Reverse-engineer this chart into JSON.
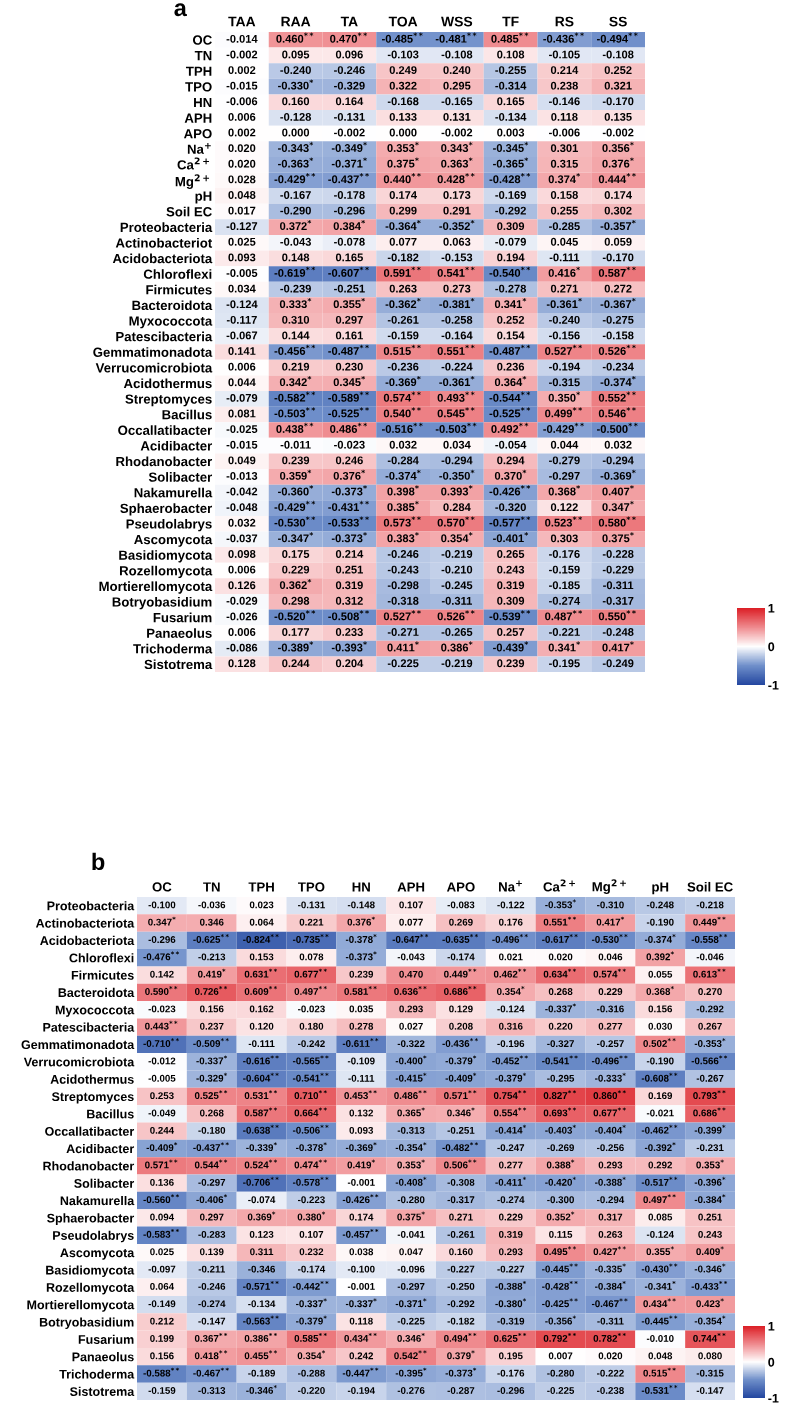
{
  "chart_data": [
    {
      "type": "heatmap",
      "title": "a",
      "clim": [
        -1,
        1
      ],
      "cticks": [
        1,
        0,
        -1
      ],
      "categories": [
        "TAA",
        "RAA",
        "TA",
        "TOA",
        "WSS",
        "TF",
        "RS",
        "SS"
      ],
      "y_categories": [
        "OC",
        "TN",
        "TPH",
        "TPO",
        "HN",
        "APH",
        "APO",
        "Na$^{+}$",
        "Ca$^{2+}$",
        "Mg$^{2+}$",
        "pH",
        "Soil EC",
        "Proteobacteria",
        "Actinobacteriot",
        "Acidobacteriota",
        "Chloroflexi",
        "Firmicutes",
        "Bacteroidota",
        "Myxococcota",
        "Patescibacteria",
        "Gemmatimonadota",
        "Verrucomicrobiota",
        "Acidothermus",
        "Streptomyces",
        "Bacillus",
        "Occallatibacter",
        "Acidibacter",
        "Rhodanobacter",
        "Solibacter",
        "Nakamurella",
        "Sphaerobacter",
        "Pseudolabrys",
        "Ascomycota",
        "Basidiomycota",
        "Rozellomycota",
        "Mortierellomycota",
        "Botryobasidium",
        "Fusarium",
        "Panaeolus",
        "Trichoderma",
        "Sistotrema"
      ],
      "cells": [
        [
          -0.014,
          0.46,
          0.47,
          -0.485,
          -0.481,
          0.485,
          -0.436,
          -0.494
        ],
        [
          -0.002,
          0.095,
          0.096,
          -0.103,
          -0.108,
          0.108,
          -0.105,
          -0.108
        ],
        [
          0.002,
          -0.24,
          -0.246,
          0.249,
          0.24,
          -0.255,
          0.214,
          0.252
        ],
        [
          -0.015,
          -0.33,
          -0.329,
          0.322,
          0.295,
          -0.314,
          0.238,
          0.321
        ],
        [
          -0.006,
          0.16,
          0.164,
          -0.168,
          -0.165,
          0.165,
          -0.146,
          -0.17
        ],
        [
          0.006,
          -0.128,
          -0.131,
          0.133,
          0.131,
          -0.134,
          0.118,
          0.135
        ],
        [
          0.002,
          0.0,
          -0.002,
          0.0,
          -0.002,
          0.003,
          -0.006,
          -0.002
        ],
        [
          0.02,
          -0.343,
          -0.349,
          0.353,
          0.343,
          -0.345,
          0.301,
          0.356
        ],
        [
          0.02,
          -0.363,
          -0.371,
          0.375,
          0.363,
          -0.365,
          0.315,
          0.376
        ],
        [
          0.028,
          -0.429,
          -0.437,
          0.44,
          0.428,
          -0.428,
          0.374,
          0.444
        ],
        [
          0.048,
          -0.167,
          -0.178,
          0.174,
          0.173,
          -0.169,
          0.158,
          0.174
        ],
        [
          0.017,
          -0.29,
          -0.296,
          0.299,
          0.291,
          -0.292,
          0.255,
          0.302
        ],
        [
          -0.127,
          0.372,
          0.384,
          -0.364,
          -0.352,
          0.309,
          -0.285,
          -0.357
        ],
        [
          0.025,
          -0.043,
          -0.078,
          0.077,
          0.063,
          -0.079,
          0.045,
          0.059
        ],
        [
          0.093,
          0.148,
          0.165,
          -0.182,
          -0.153,
          0.194,
          -0.111,
          -0.17
        ],
        [
          -0.005,
          -0.619,
          -0.607,
          0.591,
          0.541,
          -0.54,
          0.416,
          0.587
        ],
        [
          0.034,
          -0.239,
          -0.251,
          0.263,
          0.273,
          -0.278,
          0.271,
          0.272
        ],
        [
          -0.124,
          0.333,
          0.355,
          -0.362,
          -0.381,
          0.341,
          -0.361,
          -0.367
        ],
        [
          -0.117,
          0.31,
          0.297,
          -0.261,
          -0.258,
          0.252,
          -0.24,
          -0.275
        ],
        [
          -0.067,
          0.144,
          0.161,
          -0.159,
          -0.164,
          0.154,
          -0.156,
          -0.158
        ],
        [
          0.141,
          -0.456,
          -0.487,
          0.515,
          0.551,
          -0.487,
          0.527,
          0.526
        ],
        [
          0.006,
          0.219,
          0.23,
          -0.236,
          -0.224,
          0.236,
          -0.194,
          -0.234
        ],
        [
          0.044,
          0.342,
          0.345,
          -0.369,
          -0.361,
          0.364,
          -0.315,
          -0.374
        ],
        [
          -0.079,
          -0.582,
          -0.589,
          0.574,
          0.493,
          -0.544,
          0.35,
          0.552
        ],
        [
          0.081,
          -0.503,
          -0.525,
          0.54,
          0.545,
          -0.525,
          0.499,
          0.546
        ],
        [
          -0.025,
          0.438,
          0.486,
          -0.516,
          -0.503,
          0.492,
          -0.429,
          -0.5
        ],
        [
          -0.015,
          -0.011,
          -0.023,
          0.032,
          0.034,
          -0.054,
          0.044,
          0.032
        ],
        [
          0.049,
          0.239,
          0.246,
          -0.284,
          -0.294,
          0.294,
          -0.279,
          -0.294
        ],
        [
          -0.013,
          0.359,
          0.376,
          -0.374,
          -0.35,
          0.37,
          -0.297,
          -0.369
        ],
        [
          -0.042,
          -0.36,
          -0.373,
          0.398,
          0.393,
          -0.426,
          0.368,
          0.407
        ],
        [
          -0.048,
          -0.429,
          -0.431,
          0.385,
          0.284,
          -0.32,
          0.122,
          0.347
        ],
        [
          0.032,
          -0.53,
          -0.533,
          0.573,
          0.57,
          -0.577,
          0.523,
          0.58
        ],
        [
          -0.037,
          -0.347,
          -0.373,
          0.383,
          0.354,
          -0.401,
          0.303,
          0.375
        ],
        [
          0.098,
          0.175,
          0.214,
          -0.246,
          -0.219,
          0.265,
          -0.176,
          -0.228
        ],
        [
          0.006,
          0.229,
          0.251,
          -0.243,
          -0.21,
          0.243,
          -0.159,
          -0.229
        ],
        [
          0.126,
          0.362,
          0.319,
          -0.298,
          -0.245,
          0.319,
          -0.185,
          -0.311
        ],
        [
          -0.029,
          0.298,
          0.312,
          -0.318,
          -0.311,
          0.309,
          -0.274,
          -0.317
        ],
        [
          -0.026,
          -0.52,
          -0.508,
          0.527,
          0.526,
          -0.539,
          0.487,
          0.55
        ],
        [
          0.006,
          0.177,
          0.233,
          -0.271,
          -0.265,
          0.257,
          -0.221,
          -0.248
        ],
        [
          -0.086,
          -0.389,
          -0.393,
          0.411,
          0.386,
          -0.439,
          0.341,
          0.417
        ],
        [
          0.128,
          0.244,
          0.204,
          -0.225,
          -0.219,
          0.239,
          -0.195,
          -0.249
        ]
      ],
      "cell_labels": [
        [
          "-0.014",
          "0.460$^{**}$",
          "0.470$^{**}$",
          "-0.485$^{**}$",
          "-0.481$^{**}$",
          "0.485$^{**}$",
          "-0.436$^{**}$",
          "-0.494$^{**}$"
        ],
        [
          "-0.002",
          "0.095",
          "0.096",
          "-0.103",
          "-0.108",
          "0.108",
          "-0.105",
          "-0.108"
        ],
        [
          "0.002",
          "-0.240",
          "-0.246",
          "0.249",
          "0.240",
          "-0.255",
          "0.214",
          "0.252"
        ],
        [
          "-0.015",
          "-0.330$^{*}$",
          "-0.329",
          "0.322",
          "0.295",
          "-0.314",
          "0.238",
          "0.321"
        ],
        [
          "-0.006",
          "0.160",
          "0.164",
          "-0.168",
          "-0.165",
          "0.165",
          "-0.146",
          "-0.170"
        ],
        [
          "0.006",
          "-0.128",
          "-0.131",
          "0.133",
          "0.131",
          "-0.134",
          "0.118",
          "0.135"
        ],
        [
          "0.002",
          "0.000",
          "-0.002",
          "0.000",
          "-0.002",
          "0.003",
          "-0.006",
          "-0.002"
        ],
        [
          "0.020",
          "-0.343$^{*}$",
          "-0.349$^{*}$",
          "0.353$^{*}$",
          "0.343$^{*}$",
          "-0.345$^{*}$",
          "0.301",
          "0.356$^{*}$"
        ],
        [
          "0.020",
          "-0.363$^{*}$",
          "-0.371$^{*}$",
          "0.375$^{*}$",
          "0.363$^{*}$",
          "-0.365$^{*}$",
          "0.315",
          "0.376$^{*}$"
        ],
        [
          "0.028",
          "-0.429$^{**}$",
          "-0.437$^{**}$",
          "0.440$^{**}$",
          "0.428$^{**}$",
          "-0.428$^{**}$",
          "0.374$^{*}$",
          "0.444$^{**}$"
        ],
        [
          "0.048",
          "-0.167",
          "-0.178",
          "0.174",
          "0.173",
          "-0.169",
          "0.158",
          "0.174"
        ],
        [
          "0.017",
          "-0.290",
          "-0.296",
          "0.299",
          "0.291",
          "-0.292",
          "0.255",
          "0.302"
        ],
        [
          "-0.127",
          "0.372$^{*}$",
          "0.384$^{*}$",
          "-0.364$^{*}$",
          "-0.352$^{*}$",
          "0.309",
          "-0.285",
          "-0.357$^{*}$"
        ],
        [
          "0.025",
          "-0.043",
          "-0.078",
          "0.077",
          "0.063",
          "-0.079",
          "0.045",
          "0.059"
        ],
        [
          "0.093",
          "0.148",
          "0.165",
          "-0.182",
          "-0.153",
          "0.194",
          "-0.111",
          "-0.170"
        ],
        [
          "-0.005",
          "-0.619$^{**}$",
          "-0.607$^{**}$",
          "0.591$^{**}$",
          "0.541$^{**}$",
          "-0.540$^{**}$",
          "0.416$^{*}$",
          "0.587$^{**}$"
        ],
        [
          "0.034",
          "-0.239",
          "-0.251",
          "0.263",
          "0.273",
          "-0.278",
          "0.271",
          "0.272"
        ],
        [
          "-0.124",
          "0.333$^{*}$",
          "0.355$^{*}$",
          "-0.362$^{*}$",
          "-0.381$^{*}$",
          "0.341$^{*}$",
          "-0.361$^{*}$",
          "-0.367$^{*}$"
        ],
        [
          "-0.117",
          "0.310",
          "0.297",
          "-0.261",
          "-0.258",
          "0.252",
          "-0.240",
          "-0.275"
        ],
        [
          "-0.067",
          "0.144",
          "0.161",
          "-0.159",
          "-0.164",
          "0.154",
          "-0.156",
          "-0.158"
        ],
        [
          "0.141",
          "-0.456$^{**}$",
          "-0.487$^{**}$",
          "0.515$^{**}$",
          "0.551$^{**}$",
          "-0.487$^{**}$",
          "0.527$^{**}$",
          "0.526$^{**}$"
        ],
        [
          "0.006",
          "0.219",
          "0.230",
          "-0.236",
          "-0.224",
          "0.236",
          "-0.194",
          "-0.234"
        ],
        [
          "0.044",
          "0.342$^{*}$",
          "0.345$^{*}$",
          "-0.369$^{*}$",
          "-0.361$^{*}$",
          "0.364$^{*}$",
          "-0.315",
          "-0.374$^{*}$"
        ],
        [
          "-0.079",
          "-0.582$^{**}$",
          "-0.589$^{**}$",
          "0.574$^{**}$",
          "0.493$^{**}$",
          "-0.544$^{**}$",
          "0.350$^{*}$",
          "0.552$^{**}$"
        ],
        [
          "0.081",
          "-0.503$^{**}$",
          "-0.525$^{**}$",
          "0.540$^{**}$",
          "0.545$^{**}$",
          "-0.525$^{**}$",
          "0.499$^{**}$",
          "0.546$^{**}$"
        ],
        [
          "-0.025",
          "0.438$^{**}$",
          "0.486$^{**}$",
          "-0.516$^{**}$",
          "-0.503$^{**}$",
          "0.492$^{**}$",
          "-0.429$^{**}$",
          "-0.500$^{**}$"
        ],
        [
          "-0.015",
          "-0.011",
          "-0.023",
          "0.032",
          "0.034",
          "-0.054",
          "0.044",
          "0.032"
        ],
        [
          "0.049",
          "0.239",
          "0.246",
          "-0.284",
          "-0.294",
          "0.294",
          "-0.279",
          "-0.294"
        ],
        [
          "-0.013",
          "0.359$^{*}$",
          "0.376$^{*}$",
          "-0.374$^{*}$",
          "-0.350$^{*}$",
          "0.370$^{*}$",
          "-0.297",
          "-0.369$^{*}$"
        ],
        [
          "-0.042",
          "-0.360$^{*}$",
          "-0.373$^{*}$",
          "0.398$^{*}$",
          "0.393$^{*}$",
          "-0.426$^{**}$",
          "0.368$^{*}$",
          "0.407$^{*}$"
        ],
        [
          "-0.048",
          "-0.429$^{**}$",
          "-0.431$^{**}$",
          "0.385$^{*}$",
          "0.284",
          "-0.320",
          "0.122",
          "0.347$^{*}$"
        ],
        [
          "0.032",
          "-0.530$^{**}$",
          "-0.533$^{**}$",
          "0.573$^{**}$",
          "0.570$^{**}$",
          "-0.577$^{**}$",
          "0.523$^{**}$",
          "0.580$^{**}$"
        ],
        [
          "-0.037",
          "-0.347$^{*}$",
          "-0.373$^{*}$",
          "0.383$^{*}$",
          "0.354$^{*}$",
          "-0.401$^{*}$",
          "0.303",
          "0.375$^{*}$"
        ],
        [
          "0.098",
          "0.175",
          "0.214",
          "-0.246",
          "-0.219",
          "0.265",
          "-0.176",
          "-0.228"
        ],
        [
          "0.006",
          "0.229",
          "0.251",
          "-0.243",
          "-0.210",
          "0.243",
          "-0.159",
          "-0.229"
        ],
        [
          "0.126",
          "0.362$^{*}$",
          "0.319",
          "-0.298",
          "-0.245",
          "0.319",
          "-0.185",
          "-0.311"
        ],
        [
          "-0.029",
          "0.298",
          "0.312",
          "-0.318",
          "-0.311",
          "0.309",
          "-0.274",
          "-0.317"
        ],
        [
          "-0.026",
          "-0.520$^{**}$",
          "-0.508$^{**}$",
          "0.527$^{**}$",
          "0.526$^{**}$",
          "-0.539$^{**}$",
          "0.487$^{**}$",
          "0.550$^{**}$"
        ],
        [
          "0.006",
          "0.177",
          "0.233",
          "-0.271",
          "-0.265",
          "0.257",
          "-0.221",
          "-0.248"
        ],
        [
          "-0.086",
          "-0.389$^{*}$",
          "-0.393$^{*}$",
          "0.411$^{*}$",
          "0.386$^{*}$",
          "-0.439$^{*}$",
          "0.341$^{*}$",
          "0.417$^{*}$"
        ],
        [
          "0.128",
          "0.244",
          "0.204",
          "-0.225",
          "-0.219",
          "0.239",
          "-0.195",
          "-0.249"
        ]
      ]
    },
    {
      "type": "heatmap",
      "title": "b",
      "clim": [
        -1,
        1
      ],
      "cticks": [
        1,
        0,
        -1
      ],
      "categories": [
        "OC",
        "TN",
        "TPH",
        "TPO",
        "HN",
        "APH",
        "APO",
        "Na$^{+}$",
        "Ca$^{2+}$",
        "Mg$^{2+}$",
        "pH",
        "Soil EC"
      ],
      "y_categories": [
        "Proteobacteria",
        "Actinobacteriota",
        "Acidobacteriota",
        "Chloroflexi",
        "Firmicutes",
        "Bacteroidota",
        "Myxococcota",
        "Patescibacteria",
        "Gemmatimonadota",
        "Verrucomicrobiota",
        "Acidothermus",
        "Streptomyces",
        "Bacillus",
        "Occallatibacter",
        "Acidibacter",
        "Rhodanobacter",
        "Solibacter",
        "Nakamurella",
        "Sphaerobacter",
        "Pseudolabrys",
        "Ascomycota",
        "Basidiomycota",
        "Rozellomycota",
        "Mortierellomycota",
        "Botryobasidium",
        "Fusarium",
        "Panaeolus",
        "Trichoderma",
        "Sistotrema"
      ],
      "cells": [
        [
          -0.1,
          -0.036,
          0.023,
          -0.131,
          -0.148,
          0.107,
          -0.083,
          -0.122,
          -0.353,
          -0.31,
          -0.248,
          -0.218
        ],
        [
          0.347,
          0.346,
          0.064,
          0.221,
          0.376,
          0.077,
          0.269,
          0.176,
          0.551,
          0.417,
          -0.19,
          0.449
        ],
        [
          -0.296,
          -0.625,
          -0.824,
          -0.735,
          -0.378,
          -0.647,
          -0.635,
          -0.496,
          -0.617,
          -0.53,
          -0.374,
          -0.558
        ],
        [
          -0.476,
          -0.213,
          0.153,
          0.078,
          -0.373,
          -0.043,
          -0.174,
          0.021,
          0.02,
          0.046,
          0.392,
          -0.046
        ],
        [
          0.142,
          0.419,
          0.631,
          0.677,
          0.239,
          0.47,
          0.449,
          0.462,
          0.634,
          0.574,
          0.055,
          0.613
        ],
        [
          0.59,
          0.726,
          0.609,
          0.497,
          0.581,
          0.636,
          0.686,
          0.354,
          0.268,
          0.229,
          0.368,
          0.27
        ],
        [
          -0.023,
          0.156,
          0.162,
          -0.023,
          0.035,
          0.293,
          0.129,
          -0.124,
          -0.337,
          -0.316,
          0.156,
          -0.292
        ],
        [
          0.443,
          0.237,
          0.12,
          0.18,
          0.278,
          0.027,
          0.208,
          0.316,
          0.22,
          0.277,
          0.03,
          0.267
        ],
        [
          -0.71,
          -0.509,
          -0.111,
          -0.242,
          -0.611,
          -0.322,
          -0.436,
          -0.196,
          -0.327,
          -0.257,
          0.502,
          -0.353
        ],
        [
          -0.012,
          -0.337,
          -0.616,
          -0.565,
          -0.109,
          -0.4,
          -0.379,
          -0.452,
          -0.541,
          -0.496,
          -0.19,
          -0.566
        ],
        [
          -0.005,
          -0.329,
          -0.604,
          -0.541,
          -0.111,
          -0.415,
          -0.409,
          -0.379,
          -0.295,
          -0.333,
          -0.608,
          -0.267
        ],
        [
          0.253,
          0.525,
          0.531,
          0.71,
          0.453,
          0.486,
          0.571,
          0.754,
          0.827,
          0.86,
          0.169,
          0.793
        ],
        [
          -0.049,
          0.268,
          0.587,
          0.664,
          0.132,
          0.365,
          0.346,
          0.554,
          0.693,
          0.677,
          -0.021,
          0.686
        ],
        [
          0.244,
          -0.18,
          -0.638,
          -0.506,
          0.093,
          -0.313,
          -0.251,
          -0.414,
          -0.403,
          -0.404,
          -0.462,
          -0.399
        ],
        [
          -0.409,
          -0.437,
          -0.339,
          -0.378,
          -0.369,
          -0.354,
          -0.482,
          -0.247,
          -0.269,
          -0.256,
          -0.392,
          -0.231
        ],
        [
          0.571,
          0.544,
          0.524,
          0.474,
          0.419,
          0.353,
          0.506,
          0.277,
          0.388,
          0.293,
          0.292,
          0.353
        ],
        [
          0.136,
          -0.297,
          -0.706,
          -0.578,
          -0.001,
          -0.408,
          -0.308,
          -0.411,
          -0.42,
          -0.388,
          -0.517,
          -0.396
        ],
        [
          -0.56,
          -0.406,
          -0.074,
          -0.223,
          -0.426,
          -0.28,
          -0.317,
          -0.274,
          -0.3,
          -0.294,
          0.497,
          -0.384
        ],
        [
          0.094,
          0.297,
          0.369,
          0.38,
          0.174,
          0.375,
          0.271,
          0.229,
          0.352,
          0.317,
          0.085,
          0.251
        ],
        [
          -0.583,
          -0.283,
          0.123,
          0.107,
          -0.457,
          -0.041,
          -0.261,
          0.319,
          0.115,
          0.263,
          -0.124,
          0.243
        ],
        [
          0.025,
          0.139,
          0.311,
          0.232,
          0.038,
          0.047,
          0.16,
          0.293,
          0.495,
          0.427,
          0.355,
          0.409
        ],
        [
          -0.097,
          -0.211,
          -0.346,
          -0.174,
          -0.1,
          -0.096,
          -0.227,
          -0.227,
          -0.445,
          -0.335,
          -0.43,
          -0.346
        ],
        [
          0.064,
          -0.246,
          -0.571,
          -0.442,
          -0.001,
          -0.297,
          -0.25,
          -0.388,
          -0.428,
          -0.384,
          -0.341,
          -0.433
        ],
        [
          -0.149,
          -0.274,
          -0.134,
          -0.337,
          -0.337,
          -0.371,
          -0.292,
          -0.38,
          -0.425,
          -0.467,
          0.434,
          0.423
        ],
        [
          0.212,
          -0.147,
          -0.563,
          -0.379,
          0.118,
          -0.225,
          -0.182,
          -0.319,
          -0.356,
          -0.311,
          -0.445,
          -0.354
        ],
        [
          0.199,
          0.367,
          0.386,
          0.585,
          0.434,
          0.346,
          0.494,
          0.625,
          0.792,
          0.782,
          -0.01,
          0.744
        ],
        [
          0.156,
          0.418,
          0.455,
          0.354,
          0.242,
          0.542,
          0.379,
          0.195,
          0.007,
          0.02,
          0.048,
          0.08
        ],
        [
          -0.588,
          -0.467,
          -0.189,
          -0.288,
          -0.447,
          -0.395,
          -0.373,
          -0.176,
          -0.28,
          -0.222,
          0.515,
          -0.315
        ],
        [
          -0.159,
          -0.313,
          -0.346,
          -0.22,
          -0.194,
          -0.276,
          -0.287,
          -0.296,
          -0.225,
          -0.238,
          -0.531,
          -0.147
        ]
      ],
      "cell_labels": [
        [
          "-0.100",
          "-0.036",
          "0.023",
          "-0.131",
          "-0.148",
          "0.107",
          "-0.083",
          "-0.122",
          "-0.353$^{*}$",
          "-0.310",
          "-0.248",
          "-0.218"
        ],
        [
          "0.347$^{*}$",
          "0.346",
          "0.064",
          "0.221",
          "0.376$^{*}$",
          "0.077",
          "0.269",
          "0.176",
          "0.551$^{**}$",
          "0.417$^{*}$",
          "-0.190",
          "0.449$^{**}$"
        ],
        [
          "-0.296",
          "-0.625$^{**}$",
          "-0.824$^{**}$",
          "-0.735$^{**}$",
          "-0.378$^{*}$",
          "-0.647$^{**}$",
          "-0.635$^{**}$",
          "-0.496$^{**}$",
          "-0.617$^{**}$",
          "-0.530$^{**}$",
          "-0.374$^{*}$",
          "-0.558$^{**}$"
        ],
        [
          "-0.476$^{**}$",
          "-0.213",
          "0.153",
          "0.078",
          "-0.373$^{*}$",
          "-0.043",
          "-0.174",
          "0.021",
          "0.020",
          "0.046",
          "0.392$^{*}$",
          "-0.046"
        ],
        [
          "0.142",
          "0.419$^{*}$",
          "0.631$^{**}$",
          "0.677$^{**}$",
          "0.239",
          "0.470",
          "0.449$^{**}$",
          "0.462$^{**}$",
          "0.634$^{**}$",
          "0.574$^{**}$",
          "0.055",
          "0.613$^{**}$"
        ],
        [
          "0.590$^{**}$",
          "0.726$^{**}$",
          "0.609$^{**}$",
          "0.497$^{**}$",
          "0.581$^{**}$",
          "0.636$^{**}$",
          "0.686$^{**}$",
          "0.354$^{*}$",
          "0.268",
          "0.229",
          "0.368$^{*}$",
          "0.270"
        ],
        [
          "-0.023",
          "0.156",
          "0.162",
          "-0.023",
          "0.035",
          "0.293",
          "0.129",
          "-0.124",
          "-0.337$^{*}$",
          "-0.316",
          "0.156",
          "-0.292"
        ],
        [
          "0.443$^{**}$",
          "0.237",
          "0.120",
          "0.180",
          "0.278",
          "0.027",
          "0.208",
          "0.316",
          "0.220",
          "0.277",
          "0.030",
          "0.267"
        ],
        [
          "-0.710$^{**}$",
          "-0.509$^{**}$",
          "-0.111",
          "-0.242",
          "-0.611$^{**}$",
          "-0.322",
          "-0.436$^{**}$",
          "-0.196",
          "-0.327",
          "-0.257",
          "0.502$^{**}$",
          "-0.353$^{*}$"
        ],
        [
          "-0.012",
          "-0.337$^{*}$",
          "-0.616$^{**}$",
          "-0.565$^{**}$",
          "-0.109",
          "-0.400$^{*}$",
          "-0.379$^{*}$",
          "-0.452$^{**}$",
          "-0.541$^{**}$",
          "-0.496$^{**}$",
          "-0.190",
          "-0.566$^{**}$"
        ],
        [
          "-0.005",
          "-0.329$^{*}$",
          "-0.604$^{**}$",
          "-0.541$^{**}$",
          "-0.111",
          "-0.415$^{*}$",
          "-0.409$^{*}$",
          "-0.379$^{*}$",
          "-0.295",
          "-0.333$^{*}$",
          "-0.608$^{**}$",
          "-0.267"
        ],
        [
          "0.253",
          "0.525$^{**}$",
          "0.531$^{**}$",
          "0.710$^{**}$",
          "0.453$^{**}$",
          "0.486$^{**}$",
          "0.571$^{**}$",
          "0.754$^{**}$",
          "0.827$^{**}$",
          "0.860$^{**}$",
          "0.169",
          "0.793$^{**}$"
        ],
        [
          "-0.049",
          "0.268",
          "0.587$^{**}$",
          "0.664$^{**}$",
          "0.132",
          "0.365$^{*}$",
          "0.346$^{*}$",
          "0.554$^{**}$",
          "0.693$^{**}$",
          "0.677$^{**}$",
          "-0.021",
          "0.686$^{**}$"
        ],
        [
          "0.244",
          "-0.180",
          "-0.638$^{**}$",
          "-0.506$^{**}$",
          "0.093",
          "-0.313",
          "-0.251",
          "-0.414$^{*}$",
          "-0.403$^{*}$",
          "-0.404$^{*}$",
          "-0.462$^{**}$",
          "-0.399$^{*}$"
        ],
        [
          "-0.409$^{*}$",
          "-0.437$^{**}$",
          "-0.339$^{*}$",
          "-0.378$^{*}$",
          "-0.369$^{*}$",
          "-0.354$^{*}$",
          "-0.482$^{**}$",
          "-0.247",
          "-0.269",
          "-0.256",
          "-0.392$^{*}$",
          "-0.231"
        ],
        [
          "0.571$^{**}$",
          "0.544$^{**}$",
          "0.524$^{**}$",
          "0.474$^{**}$",
          "0.419$^{*}$",
          "0.353$^{*}$",
          "0.506$^{**}$",
          "0.277",
          "0.388$^{*}$",
          "0.293",
          "0.292",
          "0.353$^{*}$"
        ],
        [
          "0.136",
          "-0.297",
          "-0.706$^{**}$",
          "-0.578$^{**}$",
          "-0.001",
          "-0.408$^{*}$",
          "-0.308",
          "-0.411$^{*}$",
          "-0.420$^{*}$",
          "-0.388$^{*}$",
          "-0.517$^{**}$",
          "-0.396$^{*}$"
        ],
        [
          "-0.560$^{**}$",
          "-0.406$^{*}$",
          "-0.074",
          "-0.223",
          "-0.426$^{**}$",
          "-0.280",
          "-0.317",
          "-0.274",
          "-0.300",
          "-0.294",
          "0.497$^{**}$",
          "-0.384$^{*}$"
        ],
        [
          "0.094",
          "0.297",
          "0.369$^{*}$",
          "0.380$^{*}$",
          "0.174",
          "0.375$^{*}$",
          "0.271",
          "0.229",
          "0.352$^{*}$",
          "0.317",
          "0.085",
          "0.251"
        ],
        [
          "-0.583$^{**}$",
          "-0.283",
          "0.123",
          "0.107",
          "-0.457$^{**}$",
          "-0.041",
          "-0.261",
          "0.319",
          "0.115",
          "0.263",
          "-0.124",
          "0.243"
        ],
        [
          "0.025",
          "0.139",
          "0.311",
          "0.232",
          "0.038",
          "0.047",
          "0.160",
          "0.293",
          "0.495$^{**}$",
          "0.427$^{**}$",
          "0.355$^{*}$",
          "0.409$^{*}$"
        ],
        [
          "-0.097",
          "-0.211",
          "-0.346",
          "-0.174",
          "-0.100",
          "-0.096",
          "-0.227",
          "-0.227",
          "-0.445$^{**}$",
          "-0.335$^{*}$",
          "-0.430$^{**}$",
          "-0.346$^{*}$"
        ],
        [
          "0.064",
          "-0.246",
          "-0.571$^{**}$",
          "-0.442$^{**}$",
          "-0.001",
          "-0.297",
          "-0.250",
          "-0.388$^{*}$",
          "-0.428$^{**}$",
          "-0.384$^{*}$",
          "-0.341$^{*}$",
          "-0.433$^{**}$"
        ],
        [
          "-0.149",
          "-0.274",
          "-0.134",
          "-0.337$^{*}$",
          "-0.337$^{*}$",
          "-0.371$^{*}$",
          "-0.292",
          "-0.380$^{*}$",
          "-0.425$^{**}$",
          "-0.467$^{**}$",
          "0.434$^{**}$",
          "0.423$^{*}$"
        ],
        [
          "0.212",
          "-0.147",
          "-0.563$^{**}$",
          "-0.379$^{*}$",
          "0.118",
          "-0.225",
          "-0.182",
          "-0.319",
          "-0.356$^{*}$",
          "-0.311",
          "-0.445$^{**}$",
          "-0.354$^{*}$"
        ],
        [
          "0.199",
          "0.367$^{**}$",
          "0.386$^{**}$",
          "0.585$^{**}$",
          "0.434$^{**}$",
          "0.346$^{*}$",
          "0.494$^{**}$",
          "0.625$^{**}$",
          "0.792$^{**}$",
          "0.782$^{**}$",
          "-0.010",
          "0.744$^{**}$"
        ],
        [
          "0.156",
          "0.418$^{**}$",
          "0.455$^{**}$",
          "0.354$^{*}$",
          "0.242",
          "0.542$^{**}$",
          "0.379$^{*}$",
          "0.195",
          "0.007",
          "0.020",
          "0.048",
          "0.080"
        ],
        [
          "-0.588$^{**}$",
          "-0.467$^{**}$",
          "-0.189",
          "-0.288",
          "-0.447$^{**}$",
          "-0.395$^{*}$",
          "-0.373$^{*}$",
          "-0.176",
          "-0.280",
          "-0.222",
          "0.515$^{**}$",
          "-0.315"
        ],
        [
          "-0.159",
          "-0.313",
          "-0.346$^{*}$",
          "-0.220",
          "-0.194",
          "-0.276",
          "-0.287",
          "-0.296",
          "-0.225",
          "-0.238",
          "-0.531$^{**}$",
          "-0.147"
        ]
      ]
    }
  ]
}
